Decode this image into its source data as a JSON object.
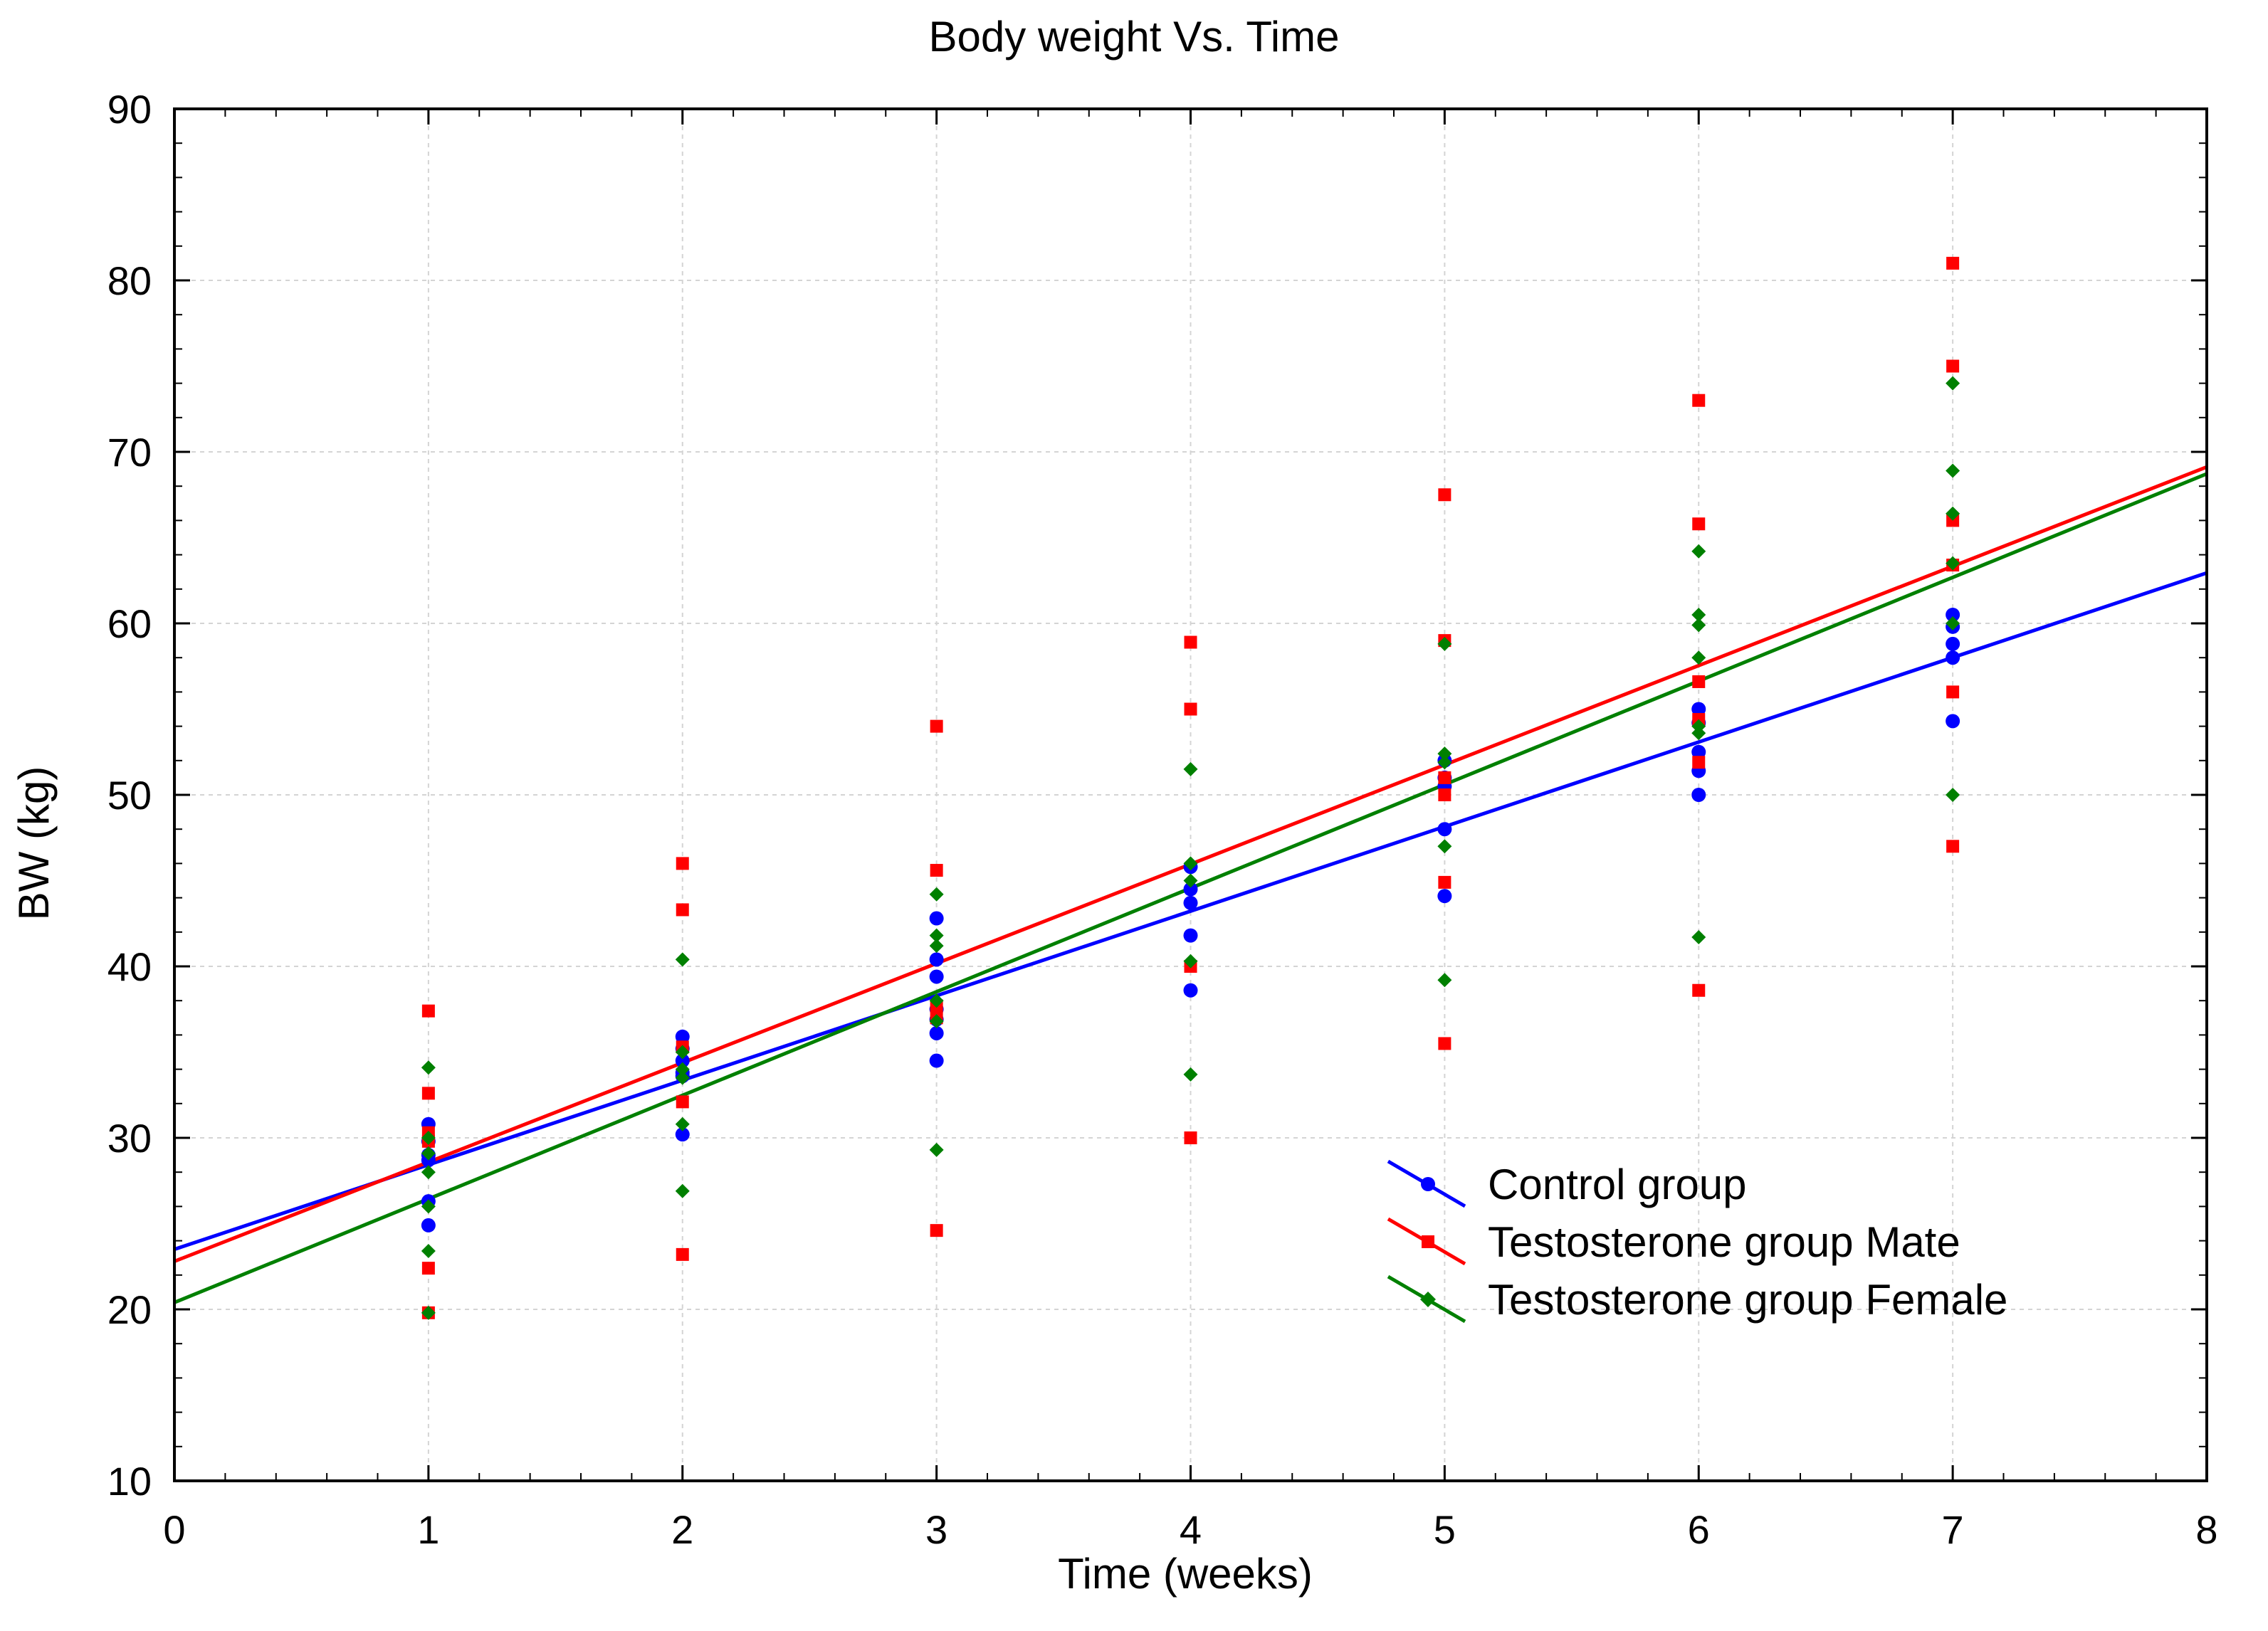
{
  "chart_data": {
    "type": "scatter",
    "title": "Body weight Vs. Time",
    "xlabel": "Time (weeks)",
    "ylabel": "BW (kg)",
    "xlim": [
      0,
      8
    ],
    "ylim": [
      10,
      90
    ],
    "x_ticks": [
      "0",
      "1",
      "2",
      "3",
      "4",
      "5",
      "6",
      "7",
      "8"
    ],
    "y_ticks": [
      "10",
      "20",
      "30",
      "40",
      "50",
      "60",
      "70",
      "80",
      "90"
    ],
    "grid": true,
    "legend_position": "bottom-right",
    "series": [
      {
        "name": "Control group",
        "color": "#0000ff",
        "marker": "circle",
        "fit": {
          "intercept": 23.5,
          "slope": 4.93
        },
        "points": [
          [
            1,
            30.8
          ],
          [
            1,
            29.8
          ],
          [
            1,
            29.0
          ],
          [
            1,
            28.7
          ],
          [
            1,
            26.3
          ],
          [
            1,
            24.9
          ],
          [
            2,
            35.9
          ],
          [
            2,
            35.2
          ],
          [
            2,
            34.5
          ],
          [
            2,
            33.8
          ],
          [
            2,
            33.6
          ],
          [
            2,
            30.2
          ],
          [
            3,
            42.8
          ],
          [
            3,
            40.4
          ],
          [
            3,
            39.4
          ],
          [
            3,
            37.5
          ],
          [
            3,
            36.9
          ],
          [
            3,
            36.1
          ],
          [
            3,
            34.5
          ],
          [
            4,
            45.8
          ],
          [
            4,
            44.5
          ],
          [
            4,
            43.7
          ],
          [
            4,
            41.8
          ],
          [
            4,
            38.6
          ],
          [
            5,
            52.0
          ],
          [
            5,
            51.0
          ],
          [
            5,
            50.5
          ],
          [
            5,
            48.0
          ],
          [
            5,
            44.1
          ],
          [
            6,
            55.0
          ],
          [
            6,
            54.2
          ],
          [
            6,
            52.5
          ],
          [
            6,
            51.4
          ],
          [
            6,
            50.0
          ],
          [
            7,
            60.5
          ],
          [
            7,
            59.8
          ],
          [
            7,
            58.8
          ],
          [
            7,
            58.0
          ],
          [
            7,
            54.3
          ]
        ]
      },
      {
        "name": "Testosterone group Mate",
        "color": "#ff0000",
        "marker": "square",
        "fit": {
          "intercept": 22.8,
          "slope": 5.79
        },
        "points": [
          [
            1,
            37.4
          ],
          [
            1,
            32.6
          ],
          [
            1,
            30.3
          ],
          [
            1,
            29.8
          ],
          [
            1,
            22.4
          ],
          [
            1,
            19.8
          ],
          [
            2,
            46.0
          ],
          [
            2,
            43.3
          ],
          [
            2,
            35.3
          ],
          [
            2,
            32.1
          ],
          [
            2,
            23.2
          ],
          [
            3,
            54.0
          ],
          [
            3,
            45.6
          ],
          [
            3,
            37.7
          ],
          [
            3,
            37.0
          ],
          [
            3,
            24.6
          ],
          [
            4,
            58.9
          ],
          [
            4,
            55.0
          ],
          [
            4,
            40.0
          ],
          [
            4,
            30.0
          ],
          [
            5,
            67.5
          ],
          [
            5,
            59.0
          ],
          [
            5,
            51.0
          ],
          [
            5,
            50.0
          ],
          [
            5,
            44.9
          ],
          [
            5,
            35.5
          ],
          [
            6,
            73.0
          ],
          [
            6,
            65.8
          ],
          [
            6,
            56.6
          ],
          [
            6,
            54.4
          ],
          [
            6,
            51.9
          ],
          [
            6,
            38.6
          ],
          [
            7,
            81.0
          ],
          [
            7,
            75.0
          ],
          [
            7,
            66.0
          ],
          [
            7,
            63.4
          ],
          [
            7,
            56.0
          ],
          [
            7,
            47.0
          ]
        ]
      },
      {
        "name": "Testosterone group Female",
        "color": "#008000",
        "marker": "diamond",
        "fit": {
          "intercept": 20.4,
          "slope": 6.04
        },
        "points": [
          [
            1,
            34.1
          ],
          [
            1,
            30.0
          ],
          [
            1,
            29.1
          ],
          [
            1,
            28.0
          ],
          [
            1,
            26.0
          ],
          [
            1,
            23.4
          ],
          [
            1,
            19.8
          ],
          [
            2,
            40.4
          ],
          [
            2,
            35.0
          ],
          [
            2,
            34.0
          ],
          [
            2,
            33.5
          ],
          [
            2,
            30.8
          ],
          [
            2,
            26.9
          ],
          [
            3,
            44.2
          ],
          [
            3,
            41.8
          ],
          [
            3,
            41.2
          ],
          [
            3,
            38.0
          ],
          [
            3,
            36.8
          ],
          [
            3,
            29.3
          ],
          [
            4,
            51.5
          ],
          [
            4,
            46.0
          ],
          [
            4,
            45.0
          ],
          [
            4,
            40.3
          ],
          [
            4,
            33.7
          ],
          [
            5,
            58.8
          ],
          [
            5,
            52.4
          ],
          [
            5,
            51.9
          ],
          [
            5,
            47.0
          ],
          [
            5,
            39.2
          ],
          [
            6,
            64.2
          ],
          [
            6,
            60.5
          ],
          [
            6,
            59.9
          ],
          [
            6,
            58.0
          ],
          [
            6,
            54.0
          ],
          [
            6,
            53.6
          ],
          [
            6,
            41.7
          ],
          [
            7,
            74.0
          ],
          [
            7,
            68.9
          ],
          [
            7,
            66.4
          ],
          [
            7,
            63.5
          ],
          [
            7,
            60.0
          ],
          [
            7,
            50.0
          ]
        ]
      }
    ]
  }
}
